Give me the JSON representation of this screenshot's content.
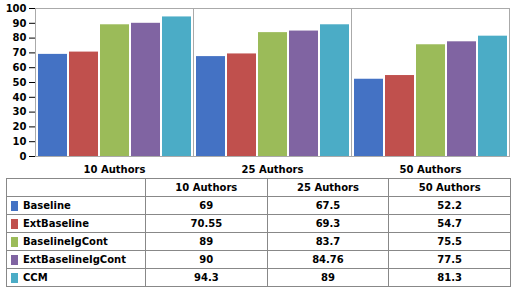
{
  "chart_data": {
    "type": "bar",
    "categories": [
      "10 Authors",
      "25 Authors",
      "50 Authors"
    ],
    "series": [
      {
        "name": "Baseline",
        "color": "#4472C4",
        "values": [
          69,
          67.5,
          52.2
        ]
      },
      {
        "name": "ExtBaseline",
        "color": "#C0504D",
        "values": [
          70.55,
          69.3,
          54.7
        ]
      },
      {
        "name": "BaselineIgCont",
        "color": "#9BBB59",
        "values": [
          89,
          83.7,
          75.5
        ]
      },
      {
        "name": "ExtBaselineIgCont",
        "color": "#8064A2",
        "values": [
          90,
          84.76,
          77.5
        ]
      },
      {
        "name": "CCM",
        "color": "#4BACC6",
        "values": [
          94.3,
          89,
          81.3
        ]
      }
    ],
    "ylim": [
      0,
      100
    ],
    "yticks": [
      0,
      10,
      20,
      30,
      40,
      50,
      60,
      70,
      80,
      90,
      100
    ],
    "grid": false,
    "legend": "bottom"
  }
}
